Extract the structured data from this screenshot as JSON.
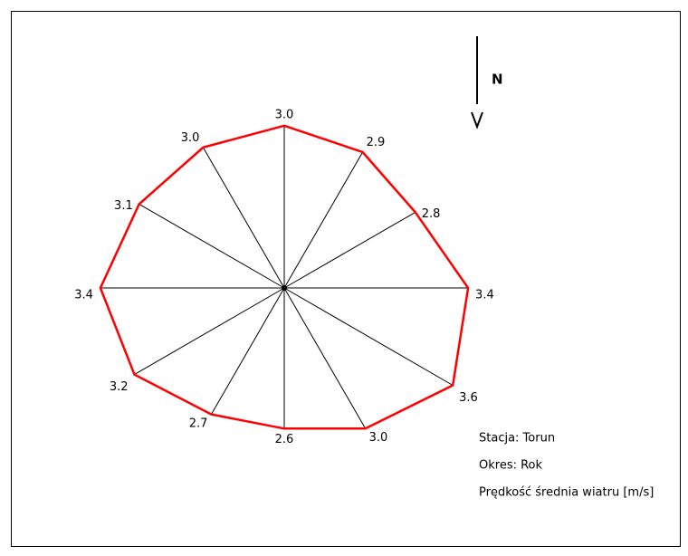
{
  "chart_data": {
    "type": "radar",
    "values": [
      3.0,
      2.9,
      2.8,
      3.4,
      3.6,
      3.0,
      2.6,
      2.7,
      3.2,
      3.4,
      3.1,
      3.0
    ],
    "value_labels": [
      "3.0",
      "2.9",
      "2.8",
      "3.4",
      "3.6",
      "3.0",
      "2.6",
      "2.7",
      "3.2",
      "3.4",
      "3.1",
      "3.0"
    ],
    "color": "#ff0000",
    "north_label": "N",
    "annotations": [
      "Stacja: Torun",
      "Okres: Rok",
      "Prędkość średnia wiatru [m/s]"
    ]
  }
}
